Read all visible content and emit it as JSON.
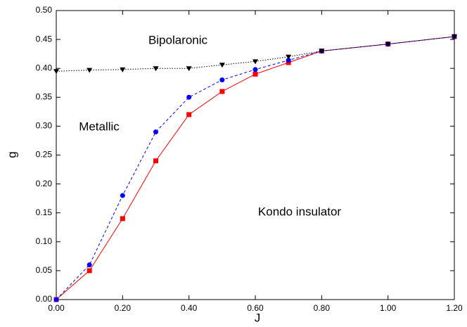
{
  "chart_data": {
    "type": "line",
    "xlabel": "J",
    "ylabel": "g",
    "xlim": [
      0,
      1.2
    ],
    "ylim": [
      0,
      0.5
    ],
    "xticks": [
      {
        "value": 0,
        "label": "0.00"
      },
      {
        "value": 0.2,
        "label": "0.20"
      },
      {
        "value": 0.4,
        "label": "0.40"
      },
      {
        "value": 0.6,
        "label": "0.60"
      },
      {
        "value": 0.8,
        "label": "0.80"
      },
      {
        "value": 1.0,
        "label": "1.00"
      },
      {
        "value": 1.2,
        "label": "1.20"
      }
    ],
    "yticks": [
      {
        "value": 0,
        "label": "0.00"
      },
      {
        "value": 0.05,
        "label": "0.05"
      },
      {
        "value": 0.1,
        "label": "0.10"
      },
      {
        "value": 0.15,
        "label": "0.15"
      },
      {
        "value": 0.2,
        "label": "0.20"
      },
      {
        "value": 0.25,
        "label": "0.25"
      },
      {
        "value": 0.3,
        "label": "0.30"
      },
      {
        "value": 0.35,
        "label": "0.35"
      },
      {
        "value": 0.4,
        "label": "0.40"
      },
      {
        "value": 0.45,
        "label": "0.45"
      },
      {
        "value": 0.5,
        "label": "0.50"
      }
    ],
    "annotations": [
      "Bipolaronic",
      "Metallic",
      "Kondo insulator"
    ],
    "series": [
      {
        "color": "#ff0000",
        "marker": "square",
        "dash": "solid",
        "x": [
          0,
          0.1,
          0.2,
          0.3,
          0.4,
          0.5,
          0.6,
          0.7,
          0.8,
          1.0,
          1.2
        ],
        "values": [
          0,
          0.05,
          0.14,
          0.24,
          0.32,
          0.36,
          0.39,
          0.41,
          0.43,
          0.442,
          0.455
        ]
      },
      {
        "color": "#0000ff",
        "marker": "circle",
        "dash": "dashed",
        "x": [
          0,
          0.1,
          0.2,
          0.3,
          0.4,
          0.5,
          0.6,
          0.7,
          0.8,
          1.0,
          1.2
        ],
        "values": [
          0,
          0.06,
          0.18,
          0.29,
          0.35,
          0.38,
          0.398,
          0.414,
          0.43,
          0.442,
          0.455
        ]
      },
      {
        "color": "#000000",
        "marker": "triangle-down",
        "dash": "dotted",
        "x": [
          0,
          0.1,
          0.2,
          0.3,
          0.4,
          0.5,
          0.6,
          0.7,
          0.8,
          1.0,
          1.2
        ],
        "values": [
          0.395,
          0.397,
          0.398,
          0.4,
          0.4,
          0.406,
          0.412,
          0.42,
          0.43,
          0.442,
          0.455
        ]
      }
    ]
  }
}
